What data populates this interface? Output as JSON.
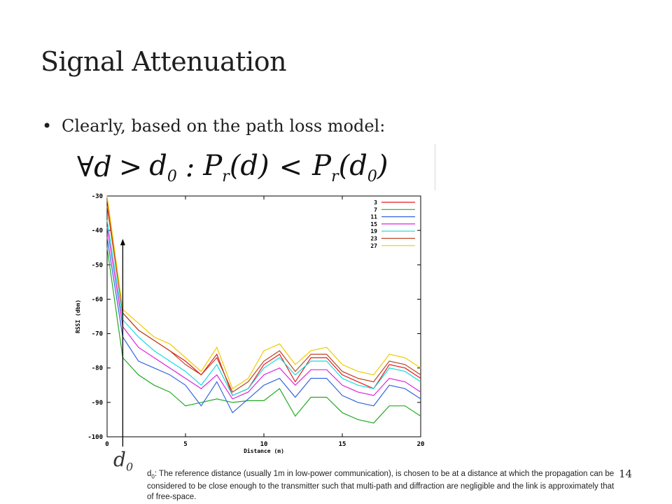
{
  "slide": {
    "title": "Signal Attenuation",
    "bullet": "Clearly, based on the path loss model:",
    "formula": {
      "forall": "∀",
      "var": "d",
      "gt": ">",
      "d0_base": "d",
      "d0_sub": "0",
      "colon": ":",
      "lhs_base": "P",
      "lhs_sub": "r",
      "lhs_arg": "(d)",
      "lt": "<",
      "rhs_base": "P",
      "rhs_sub": "r",
      "rhs_arg_open": "(d",
      "rhs_arg_sub": "0",
      "rhs_arg_close": ")"
    },
    "d0_label_base": "d",
    "d0_label_sub": "0",
    "footnote_prefix": "d",
    "footnote_sub": "0",
    "footnote_text": ": The reference distance (usually 1m in low-power communication), is chosen to be at a distance at which the propagation can be considered to be close enough to the transmitter such that multi-path and diffraction are negligible and the link is approximately that of free-space.",
    "page_number": "14"
  },
  "chart_data": {
    "type": "line",
    "xlabel": "Distance (m)",
    "ylabel": "RSSI (dbm)",
    "xlim": [
      0,
      20
    ],
    "ylim": [
      -100,
      -30
    ],
    "xticks": [
      0,
      5,
      10,
      15,
      20
    ],
    "yticks": [
      -30,
      -40,
      -50,
      -60,
      -70,
      -80,
      -90,
      -100
    ],
    "legend_position": "top-right",
    "grid": false,
    "x": [
      0,
      1,
      2,
      3,
      4,
      5,
      6,
      7,
      8,
      9,
      10,
      11,
      12,
      13,
      14,
      15,
      16,
      17,
      18,
      19,
      20
    ],
    "series": [
      {
        "name": "3",
        "color": "#e41a1c",
        "values": [
          -31,
          -64,
          -69,
          -72,
          -75,
          -78,
          -82,
          -76,
          -88,
          -86,
          -79,
          -76,
          -84,
          -77,
          -77,
          -82,
          -84,
          -86,
          -79,
          -80,
          -83
        ]
      },
      {
        "name": "7",
        "color": "#22aa22",
        "values": [
          -45,
          -77,
          -82,
          -85,
          -87,
          -91,
          -90,
          -89,
          -90,
          -89.5,
          -89.5,
          -86,
          -94,
          -88.5,
          -88.5,
          -93,
          -95,
          -96,
          -91,
          -91,
          -94
        ]
      },
      {
        "name": "11",
        "color": "#3366dd",
        "values": [
          -42,
          -71,
          -78,
          -80,
          -82,
          -85,
          -91,
          -84,
          -93,
          -89,
          -85,
          -83,
          -88.5,
          -83,
          -83,
          -88,
          -90,
          -91,
          -85,
          -86,
          -89
        ]
      },
      {
        "name": "15",
        "color": "#dd22dd",
        "values": [
          -39,
          -68,
          -74,
          -77,
          -80,
          -83,
          -86,
          -82,
          -89,
          -87,
          -82,
          -80,
          -85,
          -80.5,
          -80.5,
          -85,
          -87,
          -88,
          -83,
          -84,
          -87
        ]
      },
      {
        "name": "19",
        "color": "#11dddd",
        "values": [
          -37,
          -66,
          -71,
          -75,
          -78,
          -81,
          -85,
          -79,
          -88,
          -86,
          -80,
          -77,
          -82,
          -78,
          -78,
          -83,
          -85,
          -86,
          -80,
          -81,
          -84
        ]
      },
      {
        "name": "23",
        "color": "#bb4422",
        "values": [
          -33,
          -64,
          -69,
          -72,
          -75,
          -79,
          -82,
          -77,
          -87,
          -84,
          -78,
          -75,
          -81,
          -76,
          -76,
          -81,
          -83,
          -84,
          -78,
          -79,
          -82
        ]
      },
      {
        "name": "27",
        "color": "#eecc00",
        "values": [
          -30,
          -63,
          -67,
          -71,
          -73,
          -77,
          -81,
          -74,
          -86,
          -83,
          -75,
          -73,
          -79,
          -75,
          -74,
          -79,
          -81,
          -82,
          -76,
          -77,
          -80
        ]
      }
    ],
    "annotation_arrow_x": 1,
    "annotation_arrow_top_y": -42.5
  }
}
